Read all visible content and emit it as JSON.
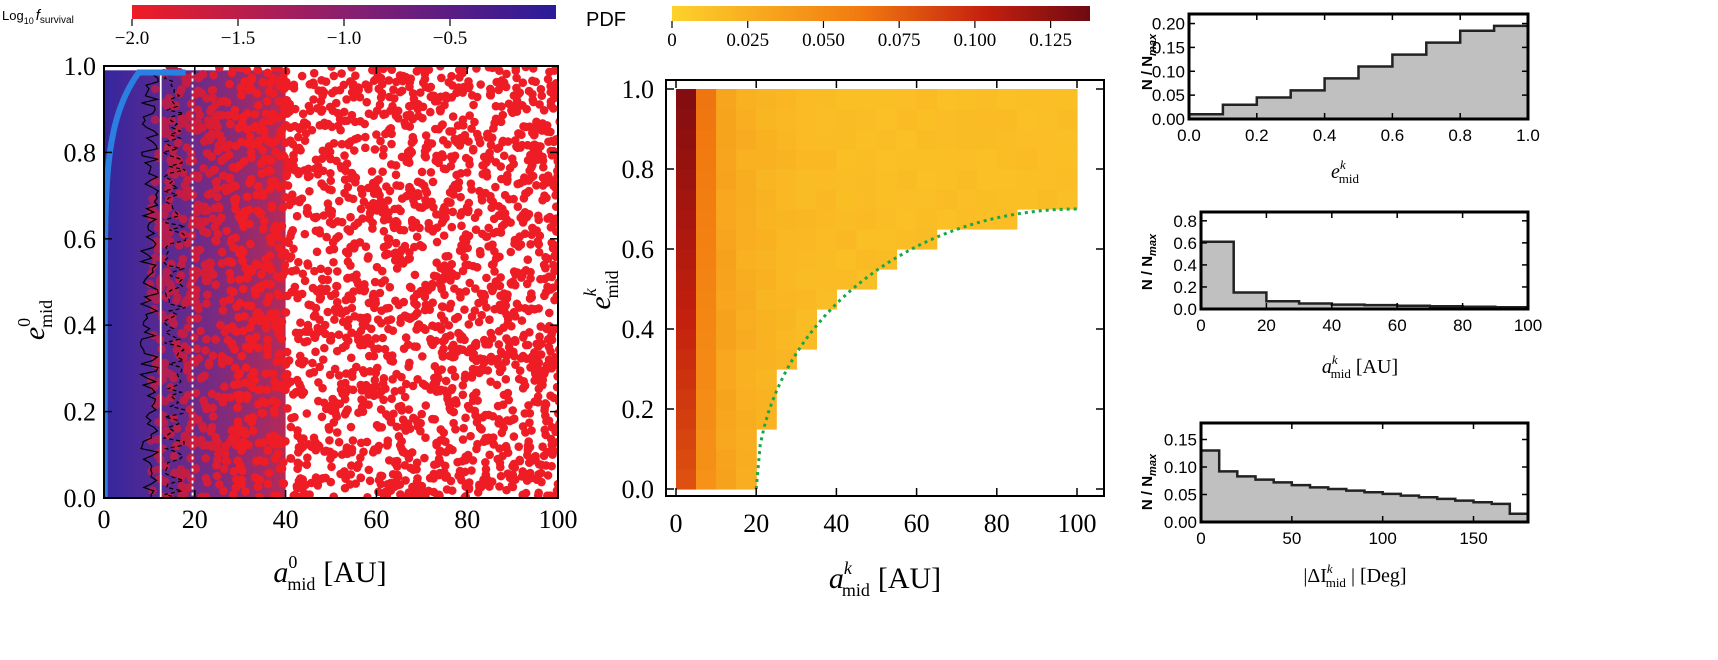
{
  "colors": {
    "survival_low": "#ee1c25",
    "survival_mid": "#8a1f6e",
    "survival_high": "#2a1b9a",
    "pdf_low": "#fdd22c",
    "pdf_mid": "#f27a10",
    "pdf_high": "#7a0a10",
    "hist_fill": "#c0c0c0",
    "blue_curve": "#2b7fe0",
    "green_curve": "#18a84a"
  },
  "chart_data": [
    {
      "id": "scatter",
      "type": "scatter",
      "title": "",
      "xlabel_base": "a",
      "xlabel_sup": "0",
      "xlabel_sub": "mid",
      "xlabel_unit": "[AU]",
      "ylabel_base": "e",
      "ylabel_sup": "0",
      "ylabel_sub": "mid",
      "xlim": [
        0,
        100
      ],
      "ylim": [
        0,
        1
      ],
      "xticks": [
        "0",
        "20",
        "40",
        "60",
        "80",
        "100"
      ],
      "yticks": [
        "0.0",
        "0.2",
        "0.4",
        "0.6",
        "0.8",
        "1.0"
      ],
      "colorbar": {
        "label_prefix": "Log",
        "label_sub": "10",
        "label_var": "f",
        "label_var_sub": "survival",
        "range": [
          -2.0,
          0.0
        ],
        "ticks": [
          "−2.0",
          "−1.5",
          "−1.0",
          "−0.5"
        ]
      },
      "vlines": [
        12.5,
        19.5
      ],
      "contour": {
        "x_range": [
          0,
          100
        ],
        "y_range": [
          0,
          1
        ],
        "note": "random red points above colour map"
      }
    },
    {
      "id": "heatmap",
      "type": "heatmap",
      "title": "",
      "xlabel_base": "a",
      "xlabel_sup": "k",
      "xlabel_sub": "mid",
      "xlabel_unit": "[AU]",
      "ylabel_base": "e",
      "ylabel_sup": "k",
      "ylabel_sub": "mid",
      "xlim": [
        0,
        100
      ],
      "ylim": [
        0,
        1
      ],
      "xticks": [
        "0",
        "20",
        "40",
        "60",
        "80",
        "100"
      ],
      "yticks": [
        "0.0",
        "0.2",
        "0.4",
        "0.6",
        "0.8",
        "1.0"
      ],
      "colorbar": {
        "label": "PDF",
        "range": [
          0,
          0.138
        ],
        "ticks": [
          "0",
          "0.025",
          "0.050",
          "0.075",
          "0.100",
          "0.125"
        ]
      },
      "bin_width_x": 5,
      "bin_width_y": 0.05,
      "boundary_curve": "e = 0.7 * sqrt(1 - ((100 - a)/80)^2)"
    },
    {
      "id": "hist_e",
      "type": "bar",
      "xlabel_base": "e",
      "xlabel_sup": "k",
      "xlabel_sub": "mid",
      "xlabel_unit": "",
      "ylabel": "N / N",
      "ylabel_sub": "max",
      "xlim": [
        0,
        1
      ],
      "ylim": [
        0,
        0.22
      ],
      "xticks": [
        "0.0",
        "0.2",
        "0.4",
        "0.6",
        "0.8",
        "1.0"
      ],
      "yticks": [
        "0.00",
        "0.05",
        "0.10",
        "0.15",
        "0.20"
      ],
      "bin_edges": [
        0.0,
        0.1,
        0.2,
        0.3,
        0.4,
        0.5,
        0.6,
        0.7,
        0.8,
        0.9,
        1.0
      ],
      "values": [
        0.01,
        0.03,
        0.045,
        0.06,
        0.085,
        0.11,
        0.135,
        0.16,
        0.185,
        0.195
      ]
    },
    {
      "id": "hist_a",
      "type": "bar",
      "xlabel_base": "a",
      "xlabel_sup": "k",
      "xlabel_sub": "mid",
      "xlabel_unit": "[AU]",
      "ylabel": "N / N",
      "ylabel_sub": "max",
      "xlim": [
        0,
        100
      ],
      "ylim": [
        0,
        0.88
      ],
      "xticks": [
        "0",
        "20",
        "40",
        "60",
        "80",
        "100"
      ],
      "yticks": [
        "0.0",
        "0.2",
        "0.4",
        "0.6",
        "0.8"
      ],
      "bin_edges": [
        0,
        10,
        20,
        30,
        40,
        50,
        60,
        70,
        80,
        90,
        100
      ],
      "values": [
        0.61,
        0.15,
        0.07,
        0.05,
        0.04,
        0.035,
        0.03,
        0.025,
        0.02,
        0.015
      ]
    },
    {
      "id": "hist_i",
      "type": "bar",
      "xlabel_base": "|ΔI",
      "xlabel_sup": "k",
      "xlabel_sub": "mid",
      "xlabel_unit": "| [Deg]",
      "ylabel": "N / N",
      "ylabel_sub": "max",
      "xlim": [
        0,
        180
      ],
      "ylim": [
        0,
        0.18
      ],
      "xticks": [
        "0",
        "50",
        "100",
        "150"
      ],
      "yticks": [
        "0.00",
        "0.05",
        "0.10",
        "0.15"
      ],
      "bin_edges": [
        0,
        10,
        20,
        30,
        40,
        50,
        60,
        70,
        80,
        90,
        100,
        110,
        120,
        130,
        140,
        150,
        160,
        170,
        180
      ],
      "values": [
        0.13,
        0.092,
        0.083,
        0.077,
        0.072,
        0.067,
        0.063,
        0.06,
        0.057,
        0.054,
        0.051,
        0.048,
        0.045,
        0.042,
        0.039,
        0.036,
        0.033,
        0.015
      ]
    }
  ]
}
